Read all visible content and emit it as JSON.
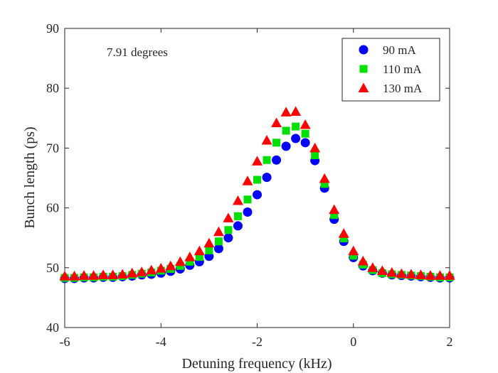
{
  "chart_data": {
    "type": "scatter",
    "title": "",
    "xlabel": "Detuning frequency (kHz)",
    "ylabel": "Bunch length (ps)",
    "xlim": [
      -6,
      2
    ],
    "ylim": [
      40,
      90
    ],
    "xticks": [
      -6,
      -4,
      -2,
      0,
      2
    ],
    "yticks": [
      40,
      50,
      60,
      70,
      80,
      90
    ],
    "xtick_labels": [
      "-6",
      "-4",
      "-2",
      "0",
      "2"
    ],
    "ytick_labels": [
      "40",
      "50",
      "60",
      "70",
      "80",
      "90"
    ],
    "annotation": "7.91 degrees",
    "legend_position": "top-right",
    "x": [
      -6.0,
      -5.8,
      -5.6,
      -5.4,
      -5.2,
      -5.0,
      -4.8,
      -4.6,
      -4.4,
      -4.2,
      -4.0,
      -3.8,
      -3.6,
      -3.4,
      -3.2,
      -3.0,
      -2.8,
      -2.6,
      -2.4,
      -2.2,
      -2.0,
      -1.8,
      -1.6,
      -1.4,
      -1.2,
      -1.0,
      -0.8,
      -0.6,
      -0.4,
      -0.2,
      0.0,
      0.2,
      0.4,
      0.6,
      0.8,
      1.0,
      1.2,
      1.4,
      1.6,
      1.8,
      2.0
    ],
    "series": [
      {
        "name": "90 mA",
        "marker": "circle",
        "color": "#0000ff",
        "values": [
          48.2,
          48.2,
          48.3,
          48.3,
          48.4,
          48.4,
          48.5,
          48.6,
          48.8,
          48.9,
          49.1,
          49.4,
          49.8,
          50.4,
          51.0,
          51.9,
          53.2,
          55.0,
          57.0,
          59.3,
          62.2,
          65.1,
          68.0,
          70.3,
          71.6,
          70.9,
          67.9,
          63.3,
          58.1,
          54.4,
          51.7,
          50.3,
          49.5,
          49.1,
          48.8,
          48.7,
          48.6,
          48.5,
          48.4,
          48.3,
          48.3
        ]
      },
      {
        "name": "110 mA",
        "marker": "square",
        "color": "#00e000",
        "values": [
          48.3,
          48.3,
          48.4,
          48.4,
          48.5,
          48.5,
          48.6,
          48.8,
          49.0,
          49.2,
          49.5,
          49.8,
          50.3,
          51.0,
          51.8,
          52.9,
          54.4,
          56.3,
          58.6,
          61.4,
          64.7,
          68.0,
          70.9,
          72.9,
          73.6,
          72.4,
          68.8,
          64.0,
          58.8,
          54.9,
          52.0,
          50.5,
          49.6,
          49.1,
          48.9,
          48.8,
          48.7,
          48.6,
          48.5,
          48.4,
          48.4
        ]
      },
      {
        "name": "130 mA",
        "marker": "triangle",
        "color": "#ff0000",
        "values": [
          48.6,
          48.6,
          48.7,
          48.7,
          48.8,
          48.8,
          48.9,
          49.1,
          49.3,
          49.6,
          49.9,
          50.3,
          51.0,
          51.8,
          52.8,
          54.1,
          56.0,
          58.3,
          61.2,
          64.5,
          67.8,
          71.3,
          74.2,
          76.0,
          76.1,
          73.9,
          70.0,
          64.9,
          59.7,
          55.7,
          52.8,
          51.1,
          50.0,
          49.5,
          49.2,
          49.0,
          48.9,
          48.8,
          48.7,
          48.7,
          48.7
        ]
      }
    ]
  }
}
